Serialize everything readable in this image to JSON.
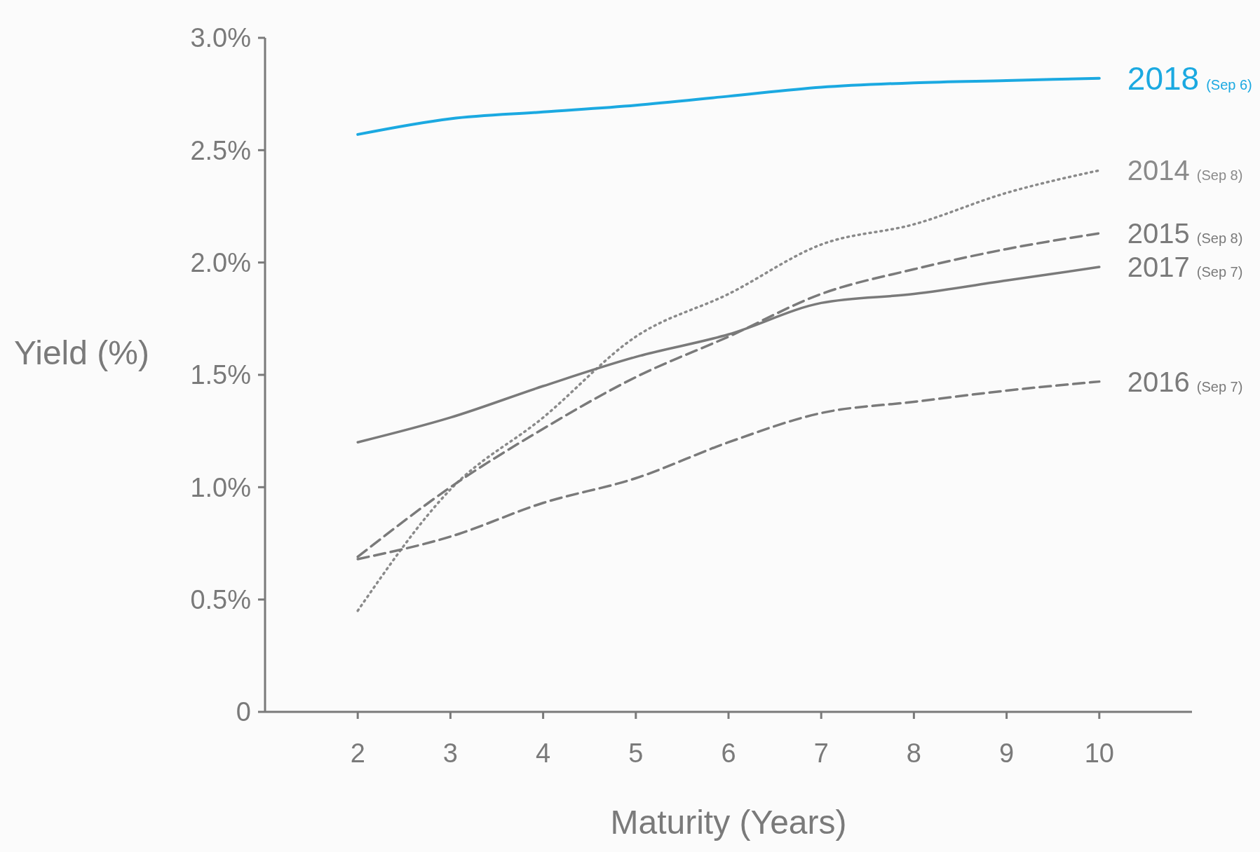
{
  "chart_data": {
    "type": "line",
    "xlabel": "Maturity (Years)",
    "ylabel": "Yield (%)",
    "x": [
      2,
      3,
      4,
      5,
      6,
      7,
      8,
      9,
      10
    ],
    "xlim": [
      1,
      11
    ],
    "xticks": [
      2,
      3,
      4,
      5,
      6,
      7,
      8,
      9,
      10
    ],
    "ylim": [
      0,
      3
    ],
    "yticks": [
      {
        "value": 0,
        "label": "0"
      },
      {
        "value": 0.5,
        "label": "0.5%"
      },
      {
        "value": 1,
        "label": "1.0%"
      },
      {
        "value": 1.5,
        "label": "1.5%"
      },
      {
        "value": 2,
        "label": "2.0%"
      },
      {
        "value": 2.5,
        "label": "2.5%"
      },
      {
        "value": 3,
        "label": "3.0%"
      }
    ],
    "grid": false,
    "marker": "none",
    "series": [
      {
        "name": "2018 (Sep 6)",
        "color": "#1ba9e1",
        "line_style": "solid",
        "values": [
          2.57,
          2.64,
          2.67,
          2.7,
          2.74,
          2.78,
          2.8,
          2.81,
          2.82
        ]
      },
      {
        "name": "2014 (Sep 8)",
        "color": "#8a8a8a",
        "line_style": "dotted",
        "values": [
          0.45,
          0.99,
          1.31,
          1.67,
          1.86,
          2.08,
          2.17,
          2.31,
          2.41
        ]
      },
      {
        "name": "2015 (Sep 8)",
        "color": "#7a7a7a",
        "line_style": "dashed",
        "values": [
          0.69,
          1.0,
          1.26,
          1.49,
          1.67,
          1.86,
          1.97,
          2.06,
          2.13
        ]
      },
      {
        "name": "2017 (Sep 7)",
        "color": "#7a7a7a",
        "line_style": "solid",
        "values": [
          1.2,
          1.31,
          1.45,
          1.58,
          1.68,
          1.82,
          1.86,
          1.92,
          1.98
        ]
      },
      {
        "name": "2016 (Sep 7)",
        "color": "#7a7a7a",
        "line_style": "dashed",
        "values": [
          0.68,
          0.78,
          0.93,
          1.04,
          1.2,
          1.33,
          1.38,
          1.43,
          1.47
        ]
      }
    ]
  }
}
